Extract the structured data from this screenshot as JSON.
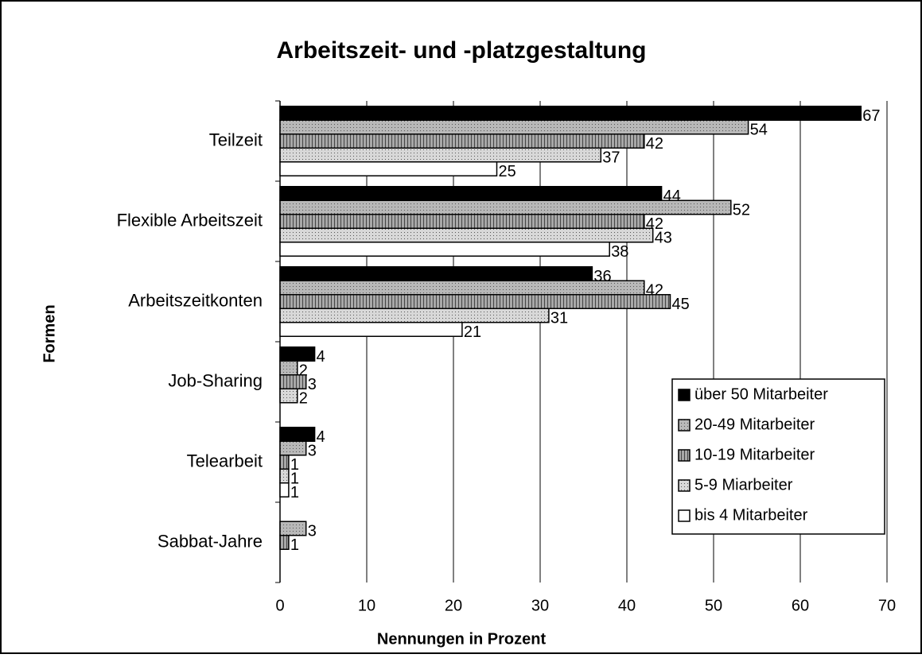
{
  "chart_data": {
    "type": "bar",
    "orientation": "horizontal",
    "title": "Arbeitszeit- und -platzgestaltung",
    "xlabel": "Nennungen in Prozent",
    "ylabel": "Formen",
    "categories": [
      "Teilzeit",
      "Flexible Arbeitszeit",
      "Arbeitszeitkonten",
      "Job-Sharing",
      "Telearbeit",
      "Sabbat-Jahre"
    ],
    "series": [
      {
        "name": "über 50 Mitarbeiter",
        "color": "#000000",
        "values": [
          67,
          44,
          36,
          4,
          4,
          null
        ]
      },
      {
        "name": "20-49 Mitarbeiter",
        "color": "#b8b8b8",
        "values": [
          54,
          52,
          42,
          2,
          3,
          3
        ]
      },
      {
        "name": "10-19 Mitarbeiter",
        "color": "#a8a8a8",
        "values": [
          42,
          42,
          45,
          3,
          1,
          1
        ]
      },
      {
        "name": "5-9 Miarbeiter",
        "color": "#d8d8d8",
        "values": [
          37,
          43,
          31,
          2,
          1,
          null
        ]
      },
      {
        "name": "bis 4 Mitarbeiter",
        "color": "#ffffff",
        "values": [
          25,
          38,
          21,
          null,
          1,
          null
        ]
      }
    ],
    "xlim": [
      0,
      70
    ],
    "xticks": [
      0,
      10,
      20,
      30,
      40,
      50,
      60,
      70
    ],
    "grid": true,
    "legend": "lower right"
  }
}
